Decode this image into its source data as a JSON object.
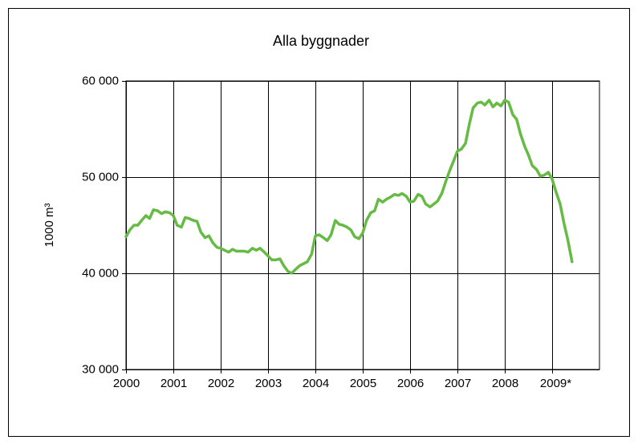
{
  "chart_data": {
    "type": "line",
    "title": "Alla byggnader",
    "y_label": "1000 m³",
    "x": [
      2000.0,
      2000.08,
      2000.17,
      2000.25,
      2000.33,
      2000.42,
      2000.5,
      2000.58,
      2000.67,
      2000.75,
      2000.83,
      2000.92,
      2001.0,
      2001.08,
      2001.17,
      2001.25,
      2001.33,
      2001.42,
      2001.5,
      2001.58,
      2001.67,
      2001.75,
      2001.83,
      2001.92,
      2002.0,
      2002.08,
      2002.17,
      2002.25,
      2002.33,
      2002.42,
      2002.5,
      2002.58,
      2002.67,
      2002.75,
      2002.83,
      2002.92,
      2003.0,
      2003.08,
      2003.17,
      2003.25,
      2003.33,
      2003.42,
      2003.5,
      2003.58,
      2003.67,
      2003.75,
      2003.83,
      2003.92,
      2004.0,
      2004.08,
      2004.17,
      2004.25,
      2004.33,
      2004.42,
      2004.5,
      2004.58,
      2004.67,
      2004.75,
      2004.83,
      2004.92,
      2005.0,
      2005.08,
      2005.17,
      2005.25,
      2005.33,
      2005.42,
      2005.5,
      2005.58,
      2005.67,
      2005.75,
      2005.83,
      2005.92,
      2006.0,
      2006.08,
      2006.17,
      2006.25,
      2006.33,
      2006.42,
      2006.5,
      2006.58,
      2006.67,
      2006.75,
      2006.83,
      2006.92,
      2007.0,
      2007.08,
      2007.17,
      2007.25,
      2007.33,
      2007.42,
      2007.5,
      2007.58,
      2007.67,
      2007.75,
      2007.83,
      2007.92,
      2008.0,
      2008.08,
      2008.17,
      2008.25,
      2008.33,
      2008.42,
      2008.5,
      2008.58,
      2008.67,
      2008.75,
      2008.83,
      2008.92,
      2009.0,
      2009.08,
      2009.17,
      2009.25,
      2009.33,
      2009.42
    ],
    "series": [
      {
        "name": "Alla byggnader",
        "color": "#66bb44",
        "values": [
          43800,
          44500,
          45000,
          45000,
          45500,
          46000,
          45700,
          46600,
          46500,
          46200,
          46400,
          46300,
          46000,
          45000,
          44800,
          45800,
          45700,
          45500,
          45400,
          44300,
          43700,
          43900,
          43200,
          42700,
          42600,
          42400,
          42200,
          42500,
          42300,
          42300,
          42300,
          42200,
          42600,
          42400,
          42600,
          42200,
          41800,
          41400,
          41400,
          41500,
          40800,
          40200,
          40000,
          40400,
          40800,
          41000,
          41200,
          42000,
          43900,
          44000,
          43700,
          43400,
          44000,
          45500,
          45100,
          45000,
          44800,
          44500,
          43800,
          43600,
          44200,
          45500,
          46300,
          46500,
          47700,
          47400,
          47700,
          47900,
          48200,
          48100,
          48300,
          48000,
          47400,
          47500,
          48200,
          48000,
          47200,
          46900,
          47200,
          47500,
          48300,
          49500,
          50600,
          51700,
          52700,
          52900,
          53500,
          55500,
          57200,
          57700,
          57800,
          57500,
          58000,
          57300,
          57700,
          57400,
          58000,
          57800,
          56500,
          56000,
          54500,
          53200,
          52300,
          51200,
          50800,
          50100,
          50200,
          50500,
          49800,
          48500,
          47200,
          45200,
          43500,
          41200
        ]
      }
    ],
    "xlim": [
      2000,
      2010
    ],
    "xticks": [
      2000,
      2001,
      2002,
      2003,
      2004,
      2005,
      2006,
      2007,
      2008,
      {
        "value": 2009,
        "label": "2009*"
      }
    ],
    "ylim": [
      30000,
      60000
    ],
    "yticks": [
      {
        "value": 30000,
        "label": "30 000"
      },
      {
        "value": 40000,
        "label": "40 000"
      },
      {
        "value": 50000,
        "label": "50 000"
      },
      {
        "value": 60000,
        "label": "60 000"
      }
    ],
    "grid": true
  }
}
